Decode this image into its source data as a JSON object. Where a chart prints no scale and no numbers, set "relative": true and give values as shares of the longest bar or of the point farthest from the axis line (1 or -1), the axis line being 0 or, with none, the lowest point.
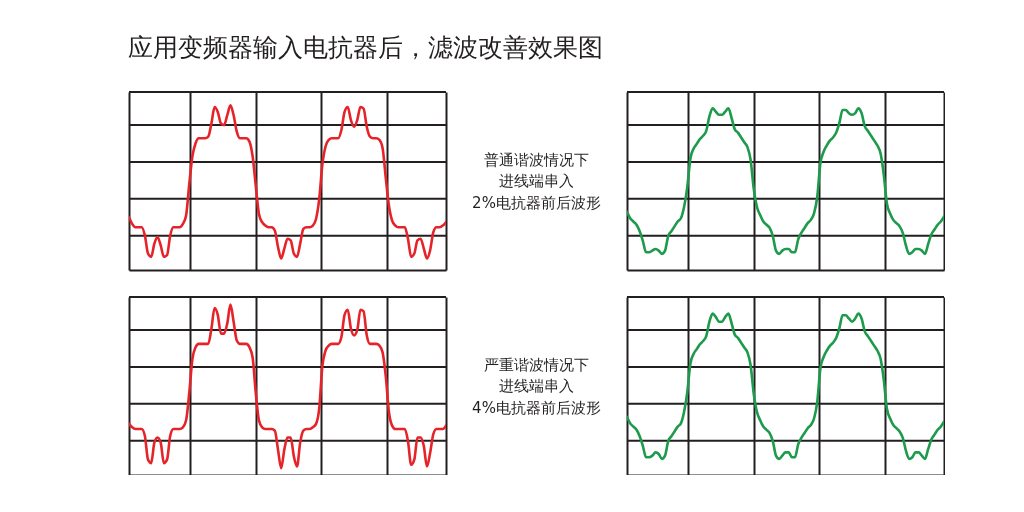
{
  "chart_data": [
    {
      "type": "line",
      "title": "应用变频器输入电抗器后，滤波改善效果图",
      "relative": true,
      "grid": true,
      "categories": [
        null,
        null,
        null,
        null,
        null,
        null,
        null,
        null,
        null,
        null,
        null,
        null,
        null,
        null,
        null,
        null,
        null,
        null,
        null,
        null,
        null,
        null,
        null,
        null,
        null,
        null,
        null,
        null,
        null,
        null,
        null,
        null,
        null,
        null,
        null,
        null,
        null,
        null,
        null,
        null,
        null,
        null,
        null,
        null,
        null,
        null,
        null,
        null,
        null,
        null,
        null,
        null,
        null,
        null,
        null,
        null,
        null,
        null,
        null,
        null,
        null,
        null,
        null,
        null,
        null,
        null,
        null,
        null,
        null,
        null,
        null,
        null,
        null,
        null,
        null,
        null,
        null,
        null,
        null,
        null,
        null,
        null,
        null,
        null,
        null,
        null,
        null,
        null,
        null,
        null,
        null,
        null,
        null,
        null,
        null,
        null,
        null,
        null,
        null,
        null,
        null
      ],
      "series": [
        {
          "color": "#e52329",
          "values": [
            0.32,
            0.28,
            0.26,
            0.26,
            0.26,
            0.21,
            0.1,
            0.08,
            0.16,
            0.2,
            0.15,
            0.08,
            0.09,
            0.21,
            0.26,
            0.26,
            0.26,
            0.28,
            0.33,
            0.52,
            0.69,
            0.77,
            0.8,
            0.8,
            0.8,
            0.81,
            0.89,
            0.99,
            0.96,
            0.89,
            0.88,
            0.94,
            1.0,
            0.94,
            0.84,
            0.8,
            0.8,
            0.8,
            0.78,
            0.69,
            0.51,
            0.34,
            0.29,
            0.27,
            0.26,
            0.26,
            0.24,
            0.14,
            0.07,
            0.13,
            0.19,
            0.18,
            0.1,
            0.08,
            0.16,
            0.25,
            0.26,
            0.26,
            0.27,
            0.31,
            0.43,
            0.64,
            0.75,
            0.79,
            0.8,
            0.8,
            0.8,
            0.85,
            0.96,
            0.99,
            0.91,
            0.87,
            0.91,
            0.99,
            0.98,
            0.87,
            0.81,
            0.8,
            0.8,
            0.79,
            0.74,
            0.56,
            0.39,
            0.3,
            0.27,
            0.26,
            0.26,
            0.26,
            0.19,
            0.08,
            0.1,
            0.18,
            0.19,
            0.13,
            0.07,
            0.12,
            0.23,
            0.26,
            0.26,
            0.27,
            0.29
          ]
        }
      ]
    },
    {
      "type": "other",
      "annotations": [
        "普通谐波情况下",
        "进线端串入",
        "2%电抗器前后波形"
      ]
    },
    {
      "type": "line",
      "relative": true,
      "grid": true,
      "categories": [
        null,
        null,
        null,
        null,
        null,
        null,
        null,
        null,
        null,
        null,
        null,
        null,
        null,
        null,
        null,
        null,
        null,
        null,
        null,
        null,
        null,
        null,
        null,
        null,
        null,
        null,
        null,
        null,
        null,
        null,
        null,
        null,
        null,
        null,
        null,
        null,
        null,
        null,
        null,
        null,
        null,
        null,
        null,
        null,
        null,
        null,
        null,
        null,
        null,
        null,
        null,
        null,
        null,
        null,
        null,
        null,
        null,
        null,
        null,
        null,
        null,
        null,
        null,
        null,
        null,
        null,
        null,
        null,
        null,
        null,
        null,
        null,
        null,
        null,
        null,
        null,
        null,
        null,
        null,
        null,
        null,
        null,
        null,
        null,
        null,
        null,
        null,
        null,
        null,
        null,
        null,
        null,
        null,
        null,
        null,
        null,
        null,
        null,
        null,
        null,
        null
      ],
      "series": [
        {
          "color": "#1d9a4b",
          "values": [
            0.36,
            0.32,
            0.3,
            0.28,
            0.24,
            0.18,
            0.11,
            0.11,
            0.12,
            0.13,
            0.12,
            0.1,
            0.12,
            0.21,
            0.24,
            0.27,
            0.3,
            0.32,
            0.39,
            0.51,
            0.69,
            0.75,
            0.78,
            0.81,
            0.83,
            0.86,
            0.95,
            1.0,
            0.98,
            0.96,
            0.96,
            0.98,
            1.0,
            0.94,
            0.87,
            0.85,
            0.82,
            0.79,
            0.76,
            0.68,
            0.5,
            0.39,
            0.34,
            0.3,
            0.28,
            0.26,
            0.21,
            0.12,
            0.1,
            0.12,
            0.13,
            0.13,
            0.11,
            0.11,
            0.19,
            0.23,
            0.26,
            0.29,
            0.31,
            0.35,
            0.45,
            0.66,
            0.73,
            0.77,
            0.8,
            0.82,
            0.85,
            0.91,
            0.99,
            0.99,
            0.97,
            0.96,
            0.97,
            1.0,
            0.97,
            0.89,
            0.86,
            0.83,
            0.8,
            0.77,
            0.72,
            0.59,
            0.41,
            0.35,
            0.31,
            0.29,
            0.27,
            0.23,
            0.15,
            0.1,
            0.11,
            0.13,
            0.13,
            0.12,
            0.1,
            0.16,
            0.22,
            0.25,
            0.28,
            0.3,
            0.33
          ]
        }
      ]
    },
    {
      "type": "line",
      "relative": true,
      "grid": true,
      "categories": [
        null,
        null,
        null,
        null,
        null,
        null,
        null,
        null,
        null,
        null,
        null,
        null,
        null,
        null,
        null,
        null,
        null,
        null,
        null,
        null,
        null,
        null,
        null,
        null,
        null,
        null,
        null,
        null,
        null,
        null,
        null,
        null,
        null,
        null,
        null,
        null,
        null,
        null,
        null,
        null,
        null,
        null,
        null,
        null,
        null,
        null,
        null,
        null,
        null,
        null,
        null,
        null,
        null,
        null,
        null,
        null,
        null,
        null,
        null,
        null,
        null,
        null,
        null,
        null,
        null,
        null,
        null,
        null,
        null,
        null,
        null,
        null,
        null,
        null,
        null,
        null,
        null,
        null,
        null,
        null,
        null,
        null,
        null,
        null,
        null,
        null,
        null,
        null,
        null,
        null,
        null,
        null,
        null,
        null,
        null,
        null,
        null,
        null,
        null,
        null,
        null
      ],
      "series": [
        {
          "color": "#e52329",
          "values": [
            0.3,
            0.28,
            0.27,
            0.27,
            0.27,
            0.23,
            0.09,
            0.07,
            0.19,
            0.22,
            0.19,
            0.07,
            0.09,
            0.23,
            0.27,
            0.27,
            0.27,
            0.28,
            0.32,
            0.48,
            0.68,
            0.75,
            0.77,
            0.77,
            0.77,
            0.77,
            0.86,
            0.98,
            0.94,
            0.83,
            0.83,
            0.89,
            1.0,
            0.9,
            0.79,
            0.77,
            0.77,
            0.77,
            0.75,
            0.69,
            0.48,
            0.32,
            0.28,
            0.27,
            0.27,
            0.27,
            0.26,
            0.15,
            0.04,
            0.15,
            0.22,
            0.22,
            0.11,
            0.05,
            0.19,
            0.26,
            0.27,
            0.27,
            0.28,
            0.3,
            0.39,
            0.64,
            0.73,
            0.76,
            0.77,
            0.77,
            0.77,
            0.81,
            0.94,
            0.97,
            0.86,
            0.82,
            0.85,
            0.97,
            0.96,
            0.82,
            0.77,
            0.77,
            0.77,
            0.76,
            0.72,
            0.58,
            0.37,
            0.29,
            0.27,
            0.27,
            0.27,
            0.27,
            0.2,
            0.06,
            0.09,
            0.22,
            0.22,
            0.17,
            0.05,
            0.13,
            0.24,
            0.27,
            0.27,
            0.27,
            0.29
          ]
        }
      ]
    },
    {
      "type": "other",
      "annotations": [
        "严重谐波情况下",
        "进线端串入",
        "4%电抗器前后波形"
      ]
    },
    {
      "type": "line",
      "relative": true,
      "grid": true,
      "categories": [
        null,
        null,
        null,
        null,
        null,
        null,
        null,
        null,
        null,
        null,
        null,
        null,
        null,
        null,
        null,
        null,
        null,
        null,
        null,
        null,
        null,
        null,
        null,
        null,
        null,
        null,
        null,
        null,
        null,
        null,
        null,
        null,
        null,
        null,
        null,
        null,
        null,
        null,
        null,
        null,
        null,
        null,
        null,
        null,
        null,
        null,
        null,
        null,
        null,
        null,
        null,
        null,
        null,
        null,
        null,
        null,
        null,
        null,
        null,
        null,
        null,
        null,
        null,
        null,
        null,
        null,
        null,
        null,
        null,
        null,
        null,
        null,
        null,
        null,
        null,
        null,
        null,
        null,
        null,
        null,
        null,
        null,
        null,
        null,
        null,
        null,
        null,
        null,
        null,
        null,
        null,
        null,
        null,
        null,
        null,
        null,
        null,
        null,
        null,
        null,
        null
      ],
      "series": [
        {
          "color": "#1d9a4b",
          "values": [
            0.36,
            0.32,
            0.3,
            0.28,
            0.24,
            0.18,
            0.11,
            0.11,
            0.12,
            0.14,
            0.13,
            0.1,
            0.12,
            0.21,
            0.24,
            0.27,
            0.3,
            0.32,
            0.39,
            0.51,
            0.69,
            0.75,
            0.78,
            0.81,
            0.83,
            0.86,
            0.95,
            1.0,
            0.98,
            0.95,
            0.95,
            0.98,
            1.0,
            0.94,
            0.87,
            0.85,
            0.82,
            0.79,
            0.76,
            0.68,
            0.5,
            0.39,
            0.34,
            0.3,
            0.28,
            0.26,
            0.21,
            0.12,
            0.1,
            0.12,
            0.14,
            0.14,
            0.11,
            0.11,
            0.19,
            0.23,
            0.26,
            0.29,
            0.31,
            0.35,
            0.45,
            0.66,
            0.73,
            0.77,
            0.8,
            0.82,
            0.85,
            0.91,
            0.99,
            0.99,
            0.97,
            0.95,
            0.97,
            1.0,
            0.97,
            0.89,
            0.86,
            0.83,
            0.8,
            0.77,
            0.72,
            0.59,
            0.41,
            0.35,
            0.31,
            0.29,
            0.27,
            0.23,
            0.15,
            0.1,
            0.11,
            0.14,
            0.14,
            0.12,
            0.1,
            0.16,
            0.22,
            0.25,
            0.28,
            0.3,
            0.33
          ]
        }
      ]
    }
  ]
}
